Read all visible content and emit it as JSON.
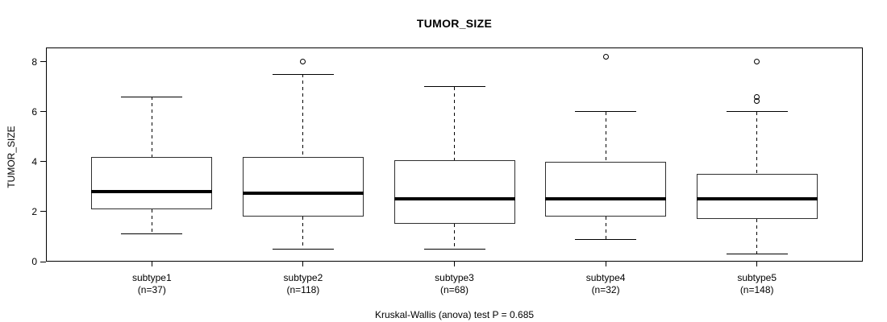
{
  "title": "TUMOR_SIZE",
  "ylabel": "TUMOR_SIZE",
  "caption": "Kruskal-Wallis (anova) test P = 0.685",
  "colors": {
    "foreground": "#000000",
    "background": "#ffffff"
  },
  "chart_data": {
    "type": "boxplot",
    "title": "TUMOR_SIZE",
    "xlabel": "",
    "ylabel": "TUMOR_SIZE",
    "ylim": [
      0,
      8.58
    ],
    "yticks": [
      0,
      2,
      4,
      6,
      8
    ],
    "grid": false,
    "legend": "none",
    "caption": "Kruskal-Wallis (anova) test P = 0.685",
    "groups": [
      {
        "label": "subtype1",
        "sublabel": "(n=37)",
        "n": 37,
        "whisker_low": 1.1,
        "q1": 2.1,
        "median": 2.8,
        "q3": 4.2,
        "whisker_high": 6.6,
        "outliers": []
      },
      {
        "label": "subtype2",
        "sublabel": "(n=118)",
        "n": 118,
        "whisker_low": 0.5,
        "q1": 1.8,
        "median": 2.75,
        "q3": 4.2,
        "whisker_high": 7.5,
        "outliers": [
          8.0
        ]
      },
      {
        "label": "subtype3",
        "sublabel": "(n=68)",
        "n": 68,
        "whisker_low": 0.5,
        "q1": 1.5,
        "median": 2.5,
        "q3": 4.05,
        "whisker_high": 7.0,
        "outliers": []
      },
      {
        "label": "subtype4",
        "sublabel": "(n=32)",
        "n": 32,
        "whisker_low": 0.9,
        "q1": 1.8,
        "median": 2.5,
        "q3": 4.0,
        "whisker_high": 6.0,
        "outliers": [
          8.2
        ]
      },
      {
        "label": "subtype5",
        "sublabel": "(n=148)",
        "n": 148,
        "whisker_low": 0.3,
        "q1": 1.7,
        "median": 2.5,
        "q3": 3.5,
        "whisker_high": 6.0,
        "outliers": [
          6.45,
          6.6,
          8.0
        ]
      }
    ]
  }
}
